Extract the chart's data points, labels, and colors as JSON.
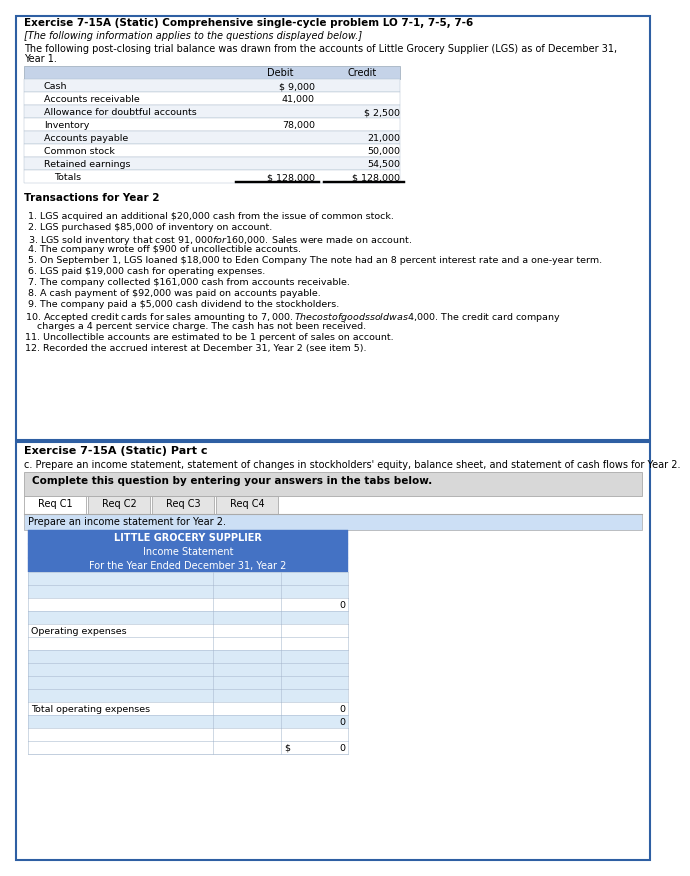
{
  "title1": "Exercise 7-15A (Static) Comprehensive single-cycle problem LO 7-1, 7-5, 7-6",
  "subtitle1": "[The following information applies to the questions displayed below.]",
  "paragraph1a": "The following post-closing trial balance was drawn from the accounts of Little Grocery Supplier (LGS) as of December 31,",
  "paragraph1b": "Year 1.",
  "trial_balance_rows": [
    [
      "Cash",
      "$ 9,000",
      ""
    ],
    [
      "Accounts receivable",
      "41,000",
      ""
    ],
    [
      "Allowance for doubtful accounts",
      "",
      "$ 2,500"
    ],
    [
      "Inventory",
      "78,000",
      ""
    ],
    [
      "Accounts payable",
      "",
      "21,000"
    ],
    [
      "Common stock",
      "",
      "50,000"
    ],
    [
      "Retained earnings",
      "",
      "54,500"
    ],
    [
      "Totals",
      "$ 128,000",
      "$ 128,000"
    ]
  ],
  "transactions_header": "Transactions for Year 2",
  "transactions": [
    " 1. LGS acquired an additional $20,000 cash from the issue of common stock.",
    " 2. LGS purchased $85,000 of inventory on account.",
    " 3. LGS sold inventory that cost $91,000 for $160,000. Sales were made on account.",
    " 4. The company wrote off $900 of uncollectible accounts.",
    " 5. On September 1, LGS loaned $18,000 to Eden Company The note had an 8 percent interest rate and a one-year term.",
    " 6. LGS paid $19,000 cash for operating expenses.",
    " 7. The company collected $161,000 cash from accounts receivable.",
    " 8. A cash payment of $92,000 was paid on accounts payable.",
    " 9. The company paid a $5,000 cash dividend to the stockholders.",
    "10. Accepted credit cards for sales amounting to $7,000. The cost of goods sold was $4,000. The credit card company",
    "    charges a 4 percent service charge. The cash has not been received.",
    "11. Uncollectible accounts are estimated to be 1 percent of sales on account.",
    "12. Recorded the accrued interest at December 31, Year 2 (see item 5)."
  ],
  "part_c_title": "Exercise 7-15A (Static) Part c",
  "part_c_desc": "c. Prepare an income statement, statement of changes in stockholders' equity, balance sheet, and statement of cash flows for Year 2.",
  "complete_msg": "Complete this question by entering your answers in the tabs below.",
  "tabs": [
    "Req C1",
    "Req C2",
    "Req C3",
    "Req C4"
  ],
  "prepare_msg": "Prepare an income statement for Year 2.",
  "income_stmt_title1": "LITTLE GROCERY SUPPLIER",
  "income_stmt_title2": "Income Statement",
  "income_stmt_title3": "For the Year Ended December 31, Year 2",
  "top_box_border": "#2e5fa3",
  "bottom_box_border": "#2e5fa3",
  "bg_light_blue": "#d6e4f7",
  "bg_blue_header": "#4472c4",
  "bg_gray_tab": "#e0e0e0",
  "bg_light_row": "#daeaf7",
  "row_border": "#8db4e2"
}
